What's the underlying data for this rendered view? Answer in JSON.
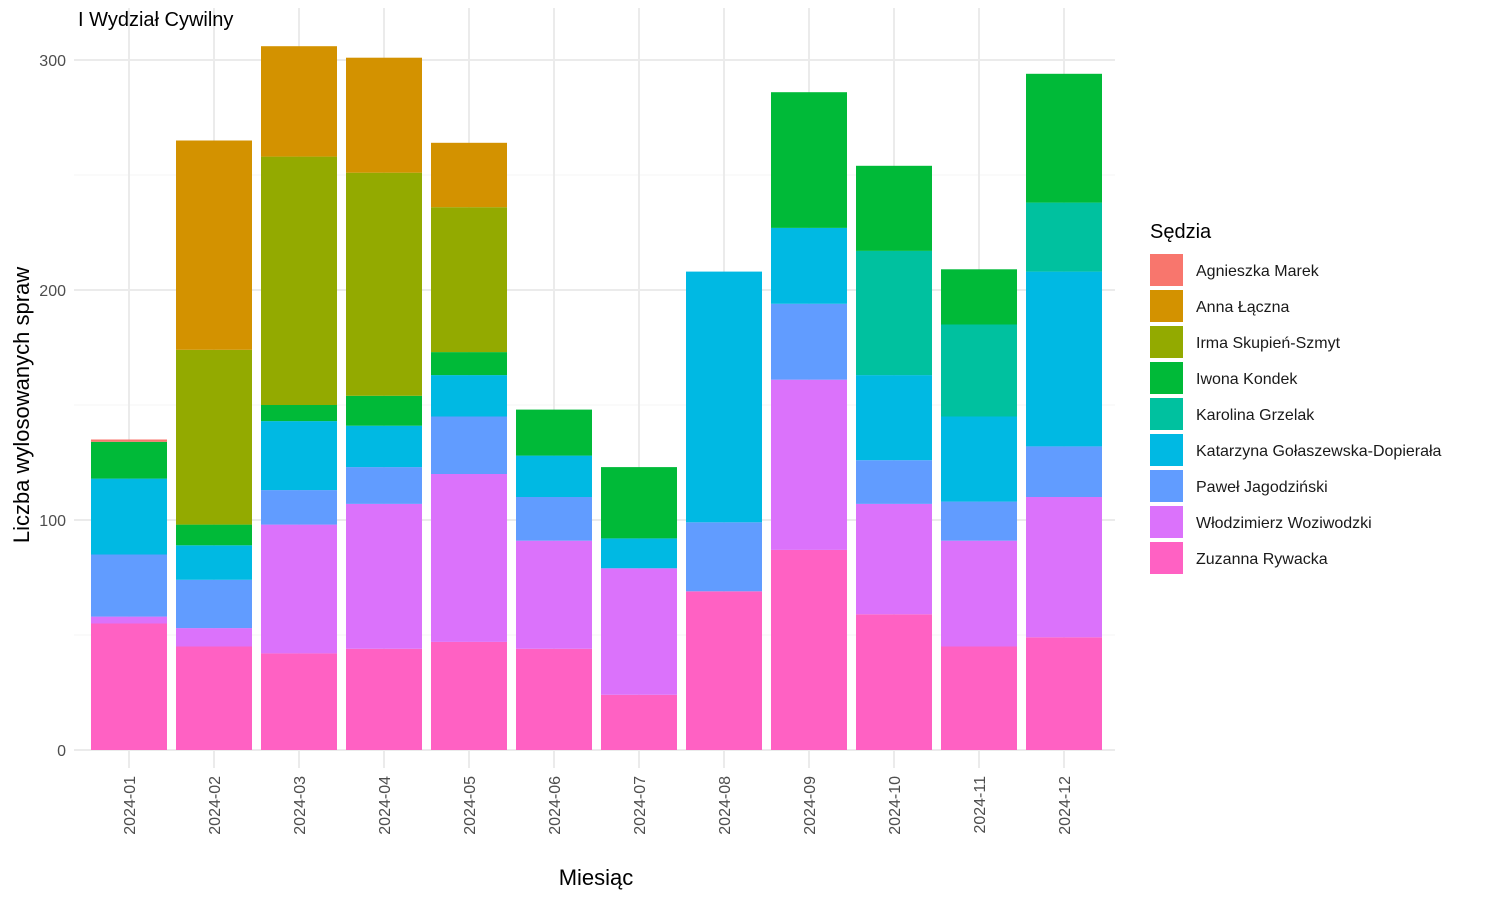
{
  "chart_data": {
    "type": "bar",
    "stacked": true,
    "title": "I Wydział Cywilny",
    "xlabel": "Miesiąc",
    "ylabel": "Liczba wylosowanych spraw",
    "ylim": [
      0,
      312
    ],
    "yticks": [
      0,
      100,
      200,
      300
    ],
    "grid": true,
    "legend_title": "Sędzia",
    "legend_position": "right",
    "categories": [
      "2024-01",
      "2024-02",
      "2024-03",
      "2024-04",
      "2024-05",
      "2024-06",
      "2024-07",
      "2024-08",
      "2024-09",
      "2024-10",
      "2024-11",
      "2024-12"
    ],
    "series": [
      {
        "name": "Zuzanna Rywacka",
        "color": "#FF61C3",
        "values": [
          55,
          45,
          42,
          44,
          47,
          44,
          24,
          69,
          87,
          59,
          45,
          49
        ]
      },
      {
        "name": "Włodzimierz Woziwodzki",
        "color": "#DB72FB",
        "values": [
          3,
          8,
          56,
          63,
          73,
          47,
          55,
          0,
          74,
          48,
          46,
          61
        ]
      },
      {
        "name": "Paweł Jagodziński",
        "color": "#619CFF",
        "values": [
          27,
          21,
          15,
          16,
          25,
          19,
          0,
          30,
          33,
          19,
          17,
          22
        ]
      },
      {
        "name": "Katarzyna Gołaszewska-Dopierała",
        "color": "#00B9E3",
        "values": [
          33,
          15,
          30,
          18,
          18,
          18,
          13,
          109,
          33,
          37,
          37,
          76
        ]
      },
      {
        "name": "Karolina Grzelak",
        "color": "#00C19F",
        "values": [
          0,
          0,
          0,
          0,
          0,
          0,
          0,
          0,
          0,
          54,
          40,
          30
        ]
      },
      {
        "name": "Iwona Kondek",
        "color": "#00BA38",
        "values": [
          16,
          9,
          7,
          13,
          10,
          20,
          31,
          0,
          59,
          37,
          24,
          56
        ]
      },
      {
        "name": "Irma Skupień-Szmyt",
        "color": "#93AA00",
        "values": [
          0,
          76,
          108,
          97,
          63,
          0,
          0,
          0,
          0,
          0,
          0,
          0
        ]
      },
      {
        "name": "Anna Łączna",
        "color": "#D39200",
        "values": [
          0,
          91,
          48,
          50,
          28,
          0,
          0,
          0,
          0,
          0,
          0,
          0
        ]
      },
      {
        "name": "Agnieszka Marek",
        "color": "#F8766D",
        "values": [
          1,
          0,
          0,
          0,
          0,
          0,
          0,
          0,
          0,
          0,
          0,
          0
        ]
      }
    ],
    "legend_order": [
      "Agnieszka Marek",
      "Anna Łączna",
      "Irma Skupień-Szmyt",
      "Iwona Kondek",
      "Karolina Grzelak",
      "Katarzyna Gołaszewska-Dopierała",
      "Paweł Jagodziński",
      "Włodzimierz Woziwodzki",
      "Zuzanna Rywacka"
    ]
  }
}
